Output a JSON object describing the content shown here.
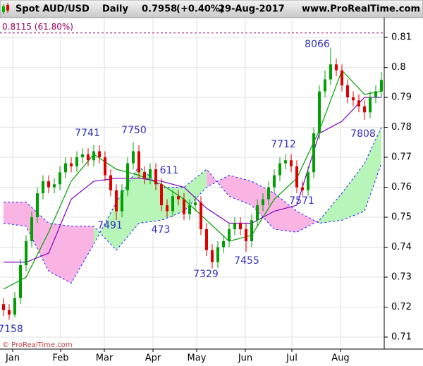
{
  "chart_data": {
    "type": "candlestick",
    "header": {
      "symbol": "Spot AUD/USD",
      "period": "Daily",
      "last": "0.7958",
      "change": "(+0.40%)",
      "date": "29-Aug-2017",
      "site": "www.ProRealTime.com"
    },
    "watermark": "© ProRealTime.com",
    "xlim": [
      -0.625,
      67.5
    ],
    "xticks": [
      {
        "value": 1.625,
        "label": "Jan"
      },
      {
        "value": 10.125,
        "label": "Feb"
      },
      {
        "value": 17.875,
        "label": "Mar"
      },
      {
        "value": 26.5,
        "label": "Apr"
      },
      {
        "value": 34.25,
        "label": "May"
      },
      {
        "value": 42.875,
        "label": "Jun"
      },
      {
        "value": 51.125,
        "label": "Jul"
      },
      {
        "value": 59.75,
        "label": "Aug"
      }
    ],
    "ylim": [
      0.706,
      0.8159
    ],
    "yticks": [
      0.71,
      0.72,
      0.73,
      0.74,
      0.75,
      0.76,
      0.77,
      0.78,
      0.79,
      0.8,
      0.81
    ],
    "grid": true,
    "candles": {
      "up_color": "#00a000",
      "down_color": "#e00000",
      "open": [
        0.721,
        0.719,
        0.7175,
        0.723,
        0.734,
        0.742,
        0.75,
        0.758,
        0.762,
        0.76,
        0.761,
        0.765,
        0.768,
        0.767,
        0.77,
        0.771,
        0.769,
        0.772,
        0.77,
        0.764,
        0.759,
        0.752,
        0.759,
        0.768,
        0.772,
        0.765,
        0.763,
        0.766,
        0.761,
        0.754,
        0.752,
        0.757,
        0.756,
        0.751,
        0.754,
        0.755,
        0.746,
        0.739,
        0.735,
        0.74,
        0.742,
        0.746,
        0.748,
        0.746,
        0.742,
        0.749,
        0.754,
        0.756,
        0.76,
        0.764,
        0.768,
        0.769,
        0.767,
        0.76,
        0.759,
        0.765,
        0.778,
        0.792,
        0.796,
        0.801,
        0.799,
        0.794,
        0.79,
        0.789,
        0.787,
        0.785,
        0.79,
        0.792
      ],
      "high": [
        0.723,
        0.721,
        0.725,
        0.736,
        0.744,
        0.752,
        0.76,
        0.764,
        0.764,
        0.763,
        0.767,
        0.77,
        0.77,
        0.772,
        0.773,
        0.773,
        0.7741,
        0.774,
        0.772,
        0.766,
        0.761,
        0.761,
        0.77,
        0.775,
        0.774,
        0.767,
        0.768,
        0.768,
        0.763,
        0.756,
        0.759,
        0.759,
        0.758,
        0.756,
        0.757,
        0.757,
        0.748,
        0.741,
        0.742,
        0.744,
        0.748,
        0.75,
        0.75,
        0.748,
        0.751,
        0.756,
        0.758,
        0.762,
        0.766,
        0.77,
        0.7712,
        0.771,
        0.769,
        0.762,
        0.767,
        0.78,
        0.794,
        0.799,
        0.8066,
        0.803,
        0.801,
        0.796,
        0.792,
        0.791,
        0.789,
        0.792,
        0.794,
        0.7985
      ],
      "low": [
        0.717,
        0.7158,
        0.7165,
        0.721,
        0.732,
        0.74,
        0.748,
        0.756,
        0.758,
        0.758,
        0.759,
        0.763,
        0.765,
        0.765,
        0.768,
        0.767,
        0.767,
        0.768,
        0.762,
        0.757,
        0.7491,
        0.75,
        0.757,
        0.766,
        0.763,
        0.761,
        0.761,
        0.759,
        0.752,
        0.75,
        0.75,
        0.754,
        0.749,
        0.749,
        0.752,
        0.744,
        0.737,
        0.7329,
        0.733,
        0.738,
        0.74,
        0.744,
        0.744,
        0.7385,
        0.74,
        0.747,
        0.752,
        0.754,
        0.758,
        0.762,
        0.766,
        0.765,
        0.758,
        0.7571,
        0.757,
        0.763,
        0.776,
        0.79,
        0.794,
        0.797,
        0.792,
        0.788,
        0.787,
        0.785,
        0.7825,
        0.783,
        0.788,
        0.79
      ],
      "close": [
        0.719,
        0.7175,
        0.723,
        0.734,
        0.742,
        0.75,
        0.758,
        0.762,
        0.76,
        0.761,
        0.765,
        0.768,
        0.767,
        0.77,
        0.771,
        0.769,
        0.772,
        0.77,
        0.764,
        0.759,
        0.752,
        0.759,
        0.768,
        0.772,
        0.765,
        0.763,
        0.766,
        0.761,
        0.754,
        0.752,
        0.757,
        0.756,
        0.751,
        0.754,
        0.755,
        0.746,
        0.739,
        0.735,
        0.74,
        0.742,
        0.746,
        0.748,
        0.746,
        0.742,
        0.749,
        0.754,
        0.756,
        0.76,
        0.764,
        0.768,
        0.769,
        0.767,
        0.76,
        0.759,
        0.765,
        0.778,
        0.792,
        0.796,
        0.801,
        0.799,
        0.794,
        0.79,
        0.789,
        0.787,
        0.785,
        0.79,
        0.792,
        0.7958
      ]
    },
    "lines": [
      {
        "color": "#00a000",
        "x": [
          0,
          4,
          8,
          12,
          16,
          20,
          24,
          28,
          32,
          36,
          40,
          44,
          48,
          52,
          56,
          60,
          64,
          67
        ],
        "values": [
          0.726,
          0.73,
          0.745,
          0.762,
          0.771,
          0.766,
          0.764,
          0.761,
          0.756,
          0.749,
          0.742,
          0.744,
          0.756,
          0.763,
          0.779,
          0.799,
          0.791,
          0.792
        ]
      },
      {
        "color": "#8000c0",
        "x": [
          0,
          4,
          8,
          12,
          16,
          20,
          24,
          28,
          32,
          36,
          40,
          44,
          48,
          52,
          56,
          60,
          64,
          67
        ],
        "values": [
          0.735,
          0.735,
          0.738,
          0.756,
          0.762,
          0.763,
          0.763,
          0.762,
          0.76,
          0.753,
          0.748,
          0.748,
          0.752,
          0.754,
          0.778,
          0.782,
          0.79,
          0.79
        ]
      }
    ],
    "cloud": {
      "bull_color": "#b8f5b8",
      "bear_color": "#fab4e4",
      "edge_color": "#2020ff",
      "x": [
        0,
        4,
        8,
        12,
        16,
        20,
        24,
        28,
        32,
        36,
        40,
        44,
        48,
        52,
        56,
        60,
        64,
        67
      ],
      "span_a": [
        0.748,
        0.747,
        0.732,
        0.728,
        0.741,
        0.755,
        0.767,
        0.76,
        0.76,
        0.766,
        0.757,
        0.754,
        0.746,
        0.745,
        0.749,
        0.758,
        0.768,
        0.78
      ],
      "span_b": [
        0.755,
        0.755,
        0.748,
        0.747,
        0.747,
        0.739,
        0.748,
        0.749,
        0.752,
        0.76,
        0.764,
        0.762,
        0.758,
        0.752,
        0.748,
        0.749,
        0.752,
        0.768
      ]
    },
    "level": {
      "value": 0.8115,
      "label": "0.8115 (61.80%)",
      "color": "#a00060"
    },
    "annotations": [
      "7158",
      "7741",
      "7750",
      "7491",
      "611",
      "473",
      "7329",
      "7455",
      "7712",
      "7571",
      "8066",
      "7808"
    ]
  }
}
